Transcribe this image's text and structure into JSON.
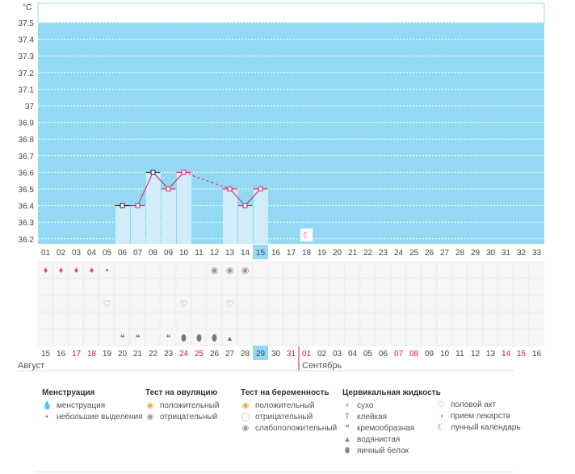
{
  "chart_data": {
    "type": "bar",
    "unit": "°C",
    "y_ticks": [
      "37.5",
      "37.4",
      "37.3",
      "37.2",
      "37.1",
      "37",
      "36.9",
      "36.8",
      "36.7",
      "36.6",
      "36.5",
      "36.4",
      "36.3",
      "36.2"
    ],
    "ylim": [
      36.2,
      37.5
    ],
    "day_numbers": [
      "01",
      "02",
      "03",
      "04",
      "05",
      "06",
      "07",
      "08",
      "09",
      "10",
      "11",
      "12",
      "13",
      "14",
      "15",
      "16",
      "17",
      "18",
      "19",
      "20",
      "21",
      "22",
      "23",
      "24",
      "25",
      "26",
      "27",
      "28",
      "29",
      "30",
      "31",
      "32",
      "33"
    ],
    "highlight_day": "15",
    "temperatures": [
      null,
      null,
      null,
      null,
      null,
      36.4,
      36.4,
      36.6,
      36.5,
      36.6,
      null,
      null,
      36.5,
      36.4,
      36.5,
      null,
      null,
      null,
      null,
      null,
      null,
      null,
      null,
      null,
      null,
      null,
      null,
      null,
      null,
      null,
      null,
      null,
      null
    ],
    "dashed_segment": [
      10,
      13
    ],
    "moon_day": "18",
    "dates": [
      "15",
      "16",
      "17",
      "18",
      "19",
      "20",
      "21",
      "22",
      "23",
      "24",
      "25",
      "26",
      "27",
      "28",
      "29",
      "30",
      "31",
      "01",
      "02",
      "03",
      "04",
      "05",
      "06",
      "07",
      "08",
      "09",
      "10",
      "11",
      "12",
      "13",
      "14",
      "15",
      "16"
    ],
    "date_red": [
      false,
      false,
      true,
      true,
      false,
      false,
      false,
      false,
      false,
      true,
      true,
      false,
      false,
      false,
      false,
      false,
      true,
      true,
      false,
      false,
      false,
      false,
      false,
      true,
      true,
      false,
      false,
      false,
      false,
      false,
      true,
      true,
      false
    ],
    "highlight_date": "29",
    "months": [
      "Август",
      "Сентябрь"
    ],
    "symptom_rows": {
      "menstruation": [
        "heavy",
        "heavy",
        "heavy",
        "heavy",
        "light",
        null,
        null,
        null,
        null,
        null,
        null,
        null,
        null,
        null,
        null,
        null,
        null,
        null,
        null,
        null,
        null,
        null,
        null,
        null,
        null,
        null,
        null,
        null,
        null,
        null,
        null,
        null,
        null
      ],
      "ovulation": [
        null,
        null,
        null,
        null,
        null,
        null,
        null,
        null,
        null,
        null,
        null,
        "negative",
        "negative",
        "negative",
        null,
        null,
        null,
        null,
        null,
        null,
        null,
        null,
        null,
        null,
        null,
        null,
        null,
        null,
        null,
        null,
        null,
        null,
        null
      ],
      "intercourse": [
        null,
        null,
        null,
        null,
        "yes",
        null,
        null,
        null,
        null,
        "yes",
        null,
        null,
        "yes",
        null,
        null,
        null,
        null,
        null,
        null,
        null,
        null,
        null,
        null,
        null,
        null,
        null,
        null,
        null,
        null,
        null,
        null,
        null,
        null
      ],
      "fluid": [
        null,
        null,
        null,
        null,
        null,
        "creamy",
        "creamy",
        null,
        "creamy",
        "eggwhite",
        "eggwhite",
        "eggwhite",
        "watery",
        null,
        null,
        null,
        null,
        null,
        null,
        null,
        null,
        null,
        null,
        null,
        null,
        null,
        null,
        null,
        null,
        null,
        null,
        null,
        null
      ]
    },
    "colors": {
      "plot_bg": "#94d9f3",
      "bar": "#d2ecfa",
      "line": "#d51c62",
      "highlight": "#94d9f3",
      "red_text": "#d5143c",
      "grid": "#ffffff"
    }
  },
  "legend": {
    "menstruation": {
      "title": "Менструация",
      "items": [
        "менструация",
        "небольшие выделения"
      ]
    },
    "ovulation": {
      "title": "Тест на овуляцию",
      "items": [
        "положительный",
        "отрицательный"
      ]
    },
    "pregnancy": {
      "title": "Тест на беременность",
      "items": [
        "положительный",
        "отрицательный",
        "слабоположительный"
      ]
    },
    "cervical": {
      "title": "Цервикальная жидкость",
      "items": [
        "сухо",
        "клейкая",
        "кремообразная",
        "водянистая",
        "яичный белок"
      ]
    },
    "misc": {
      "items": [
        "половой акт",
        "прием лекарств",
        "лунный календарь"
      ]
    },
    "icons": {
      "menstruation": [
        "drop-pair-icon",
        "drop-small-icon"
      ],
      "ovulation": [
        "orange-circle-icon",
        "gray-circle-icon"
      ],
      "pregnancy": [
        "orange-circle-icon",
        "white-circle-icon",
        "gray-circle-icon"
      ],
      "cervical": [
        "cross-icon",
        "t-icon",
        "comma-drop-icon",
        "small-drop-icon",
        "egg-icon"
      ],
      "misc": [
        "heart-icon",
        "pill-icon",
        "moon-icon"
      ]
    }
  }
}
